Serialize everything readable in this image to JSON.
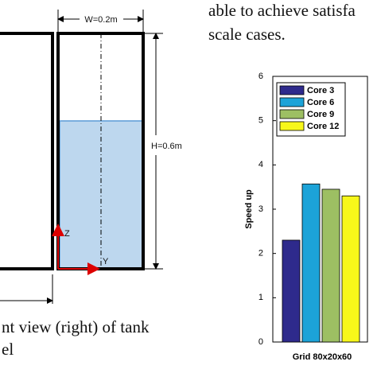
{
  "text": {
    "lines_right": [
      "able to achieve satisfa",
      "scale cases."
    ],
    "caption": [
      "nt view (right) of tank",
      "el"
    ]
  },
  "figure": {
    "width_label": "W=0.2m",
    "height_label": "H=0.6m",
    "z_label": "Z",
    "y_label": "Y"
  },
  "chart_data": {
    "type": "bar",
    "categories": [
      "Grid 80x20x60"
    ],
    "y_label": "Speed up",
    "series": [
      {
        "name": "Core 3",
        "color": "#2e2a8c",
        "values": [
          2.3
        ]
      },
      {
        "name": "Core 6",
        "color": "#1ca3d8",
        "values": [
          3.57
        ]
      },
      {
        "name": "Core 9",
        "color": "#9dbf63",
        "values": [
          3.45
        ]
      },
      {
        "name": "Core 12",
        "color": "#f7f71a",
        "values": [
          3.3
        ]
      }
    ],
    "ylim": [
      0,
      6
    ],
    "yticks": [
      0,
      1,
      2,
      3,
      4,
      5,
      6
    ]
  }
}
